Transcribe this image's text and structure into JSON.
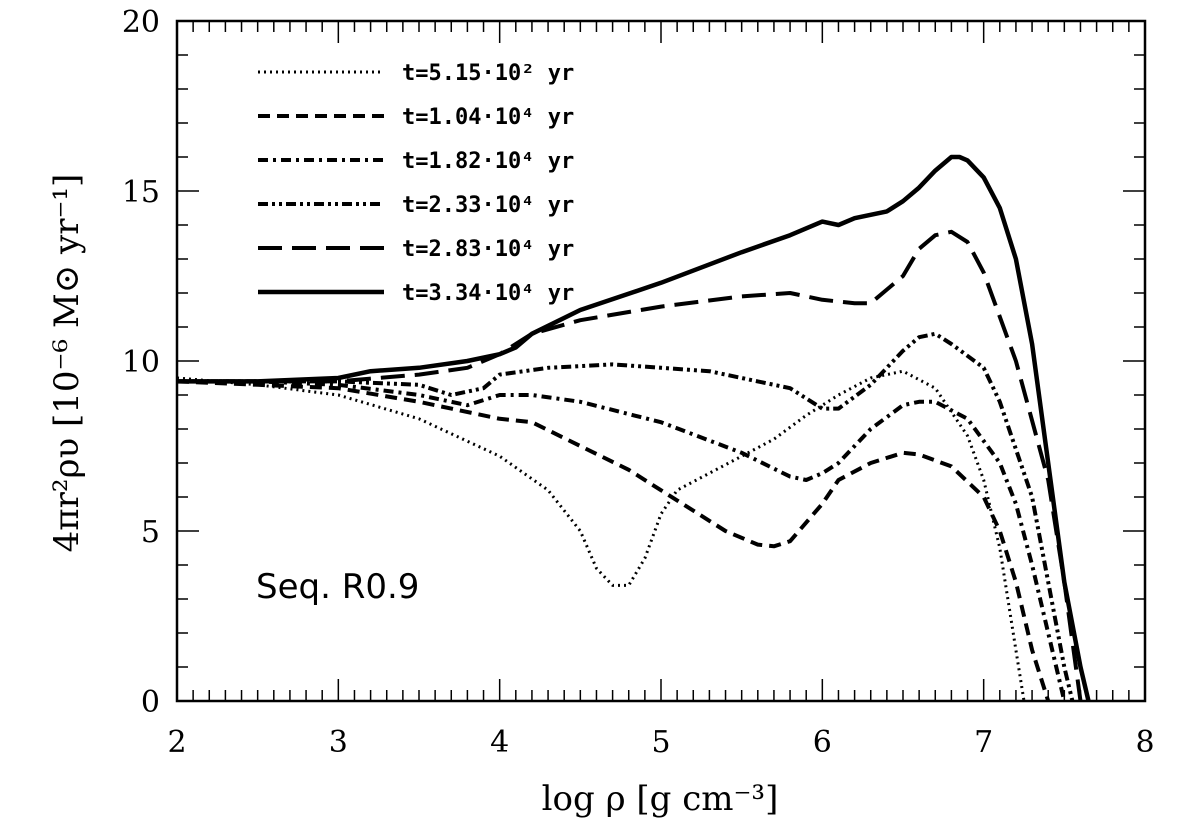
{
  "chart_data": {
    "type": "line",
    "xlabel": "log ρ [g cm⁻³]",
    "ylabel": "4πr²ρυ [10⁻⁶ M⊙ yr⁻¹]",
    "xlim": [
      2,
      8
    ],
    "ylim": [
      0,
      20
    ],
    "x_ticks": [
      "2",
      "3",
      "4",
      "5",
      "6",
      "7",
      "8"
    ],
    "y_ticks": [
      "0",
      "5",
      "10",
      "15",
      "20"
    ],
    "grid": false,
    "legend_position": "top-left",
    "annotation": "Seq. R0.9",
    "series": [
      {
        "name": "t=5.15·10² yr",
        "style": "dotted",
        "x": [
          2.0,
          2.5,
          3.0,
          3.5,
          4.0,
          4.3,
          4.5,
          4.6,
          4.7,
          4.8,
          4.9,
          5.0,
          5.1,
          5.3,
          5.5,
          5.7,
          5.9,
          6.1,
          6.3,
          6.5,
          6.7,
          6.9,
          7.0,
          7.1,
          7.2,
          7.25
        ],
        "y": [
          9.5,
          9.3,
          9.0,
          8.3,
          7.2,
          6.2,
          5.0,
          3.9,
          3.4,
          3.4,
          4.2,
          5.5,
          6.2,
          6.7,
          7.2,
          7.7,
          8.4,
          9.0,
          9.5,
          9.7,
          9.2,
          7.8,
          6.5,
          4.5,
          1.5,
          0.0
        ]
      },
      {
        "name": "t=1.04·10⁴ yr",
        "style": "dashed",
        "x": [
          2.0,
          2.5,
          3.0,
          3.5,
          4.0,
          4.2,
          4.5,
          4.8,
          5.1,
          5.4,
          5.6,
          5.7,
          5.8,
          6.0,
          6.1,
          6.3,
          6.5,
          6.6,
          6.8,
          7.0,
          7.1,
          7.2,
          7.3,
          7.4
        ],
        "y": [
          9.4,
          9.3,
          9.2,
          8.8,
          8.3,
          8.2,
          7.5,
          6.8,
          5.9,
          5.0,
          4.6,
          4.55,
          4.7,
          5.8,
          6.5,
          7.0,
          7.3,
          7.25,
          6.9,
          6.0,
          5.0,
          3.5,
          1.5,
          0.0
        ]
      },
      {
        "name": "t=1.82·10⁴ yr",
        "style": "dashdot",
        "x": [
          2.0,
          2.5,
          3.0,
          3.5,
          3.8,
          4.0,
          4.2,
          4.5,
          5.0,
          5.5,
          5.8,
          5.9,
          6.0,
          6.1,
          6.3,
          6.5,
          6.6,
          6.7,
          6.9,
          7.1,
          7.2,
          7.3,
          7.4,
          7.5
        ],
        "y": [
          9.4,
          9.4,
          9.3,
          9.0,
          8.7,
          9.0,
          9.0,
          8.8,
          8.2,
          7.3,
          6.6,
          6.5,
          6.7,
          7.0,
          8.0,
          8.7,
          8.8,
          8.8,
          8.3,
          7.0,
          5.8,
          4.0,
          2.0,
          0.0
        ]
      },
      {
        "name": "t=2.33·10⁴ yr",
        "style": "dashdotdot",
        "x": [
          2.0,
          2.5,
          3.0,
          3.5,
          3.7,
          3.9,
          4.0,
          4.3,
          4.7,
          5.0,
          5.3,
          5.6,
          5.8,
          5.9,
          6.0,
          6.1,
          6.3,
          6.5,
          6.6,
          6.7,
          6.8,
          7.0,
          7.1,
          7.3,
          7.4,
          7.5,
          7.55
        ],
        "y": [
          9.4,
          9.4,
          9.4,
          9.3,
          9.0,
          9.2,
          9.6,
          9.8,
          9.9,
          9.8,
          9.7,
          9.4,
          9.2,
          8.9,
          8.6,
          8.6,
          9.3,
          10.3,
          10.7,
          10.8,
          10.5,
          9.8,
          8.8,
          6.0,
          3.5,
          1.0,
          0.0
        ]
      },
      {
        "name": "t=2.83·10⁴ yr",
        "style": "longdash",
        "x": [
          2.0,
          2.5,
          3.0,
          3.5,
          3.8,
          4.0,
          4.2,
          4.5,
          5.0,
          5.5,
          5.8,
          6.0,
          6.2,
          6.3,
          6.5,
          6.6,
          6.7,
          6.8,
          6.9,
          7.0,
          7.2,
          7.4,
          7.5,
          7.6
        ],
        "y": [
          9.4,
          9.4,
          9.4,
          9.6,
          9.8,
          10.2,
          10.8,
          11.2,
          11.6,
          11.9,
          12.0,
          11.8,
          11.7,
          11.7,
          12.5,
          13.3,
          13.7,
          13.8,
          13.5,
          12.6,
          10.0,
          6.5,
          3.5,
          0.0
        ]
      },
      {
        "name": "t=3.34·10⁴ yr",
        "style": "solid",
        "x": [
          2.0,
          2.5,
          3.0,
          3.2,
          3.5,
          3.8,
          4.0,
          4.1,
          4.2,
          4.5,
          5.0,
          5.5,
          5.8,
          6.0,
          6.1,
          6.2,
          6.3,
          6.4,
          6.5,
          6.6,
          6.7,
          6.8,
          6.85,
          6.9,
          7.0,
          7.1,
          7.2,
          7.3,
          7.4,
          7.5,
          7.6,
          7.65
        ],
        "y": [
          9.4,
          9.4,
          9.5,
          9.7,
          9.8,
          10.0,
          10.2,
          10.4,
          10.8,
          11.5,
          12.3,
          13.2,
          13.7,
          14.1,
          14.0,
          14.2,
          14.3,
          14.4,
          14.7,
          15.1,
          15.6,
          16.0,
          16.0,
          15.9,
          15.4,
          14.5,
          13.0,
          10.5,
          7.0,
          3.5,
          1.0,
          0.0
        ]
      }
    ]
  }
}
